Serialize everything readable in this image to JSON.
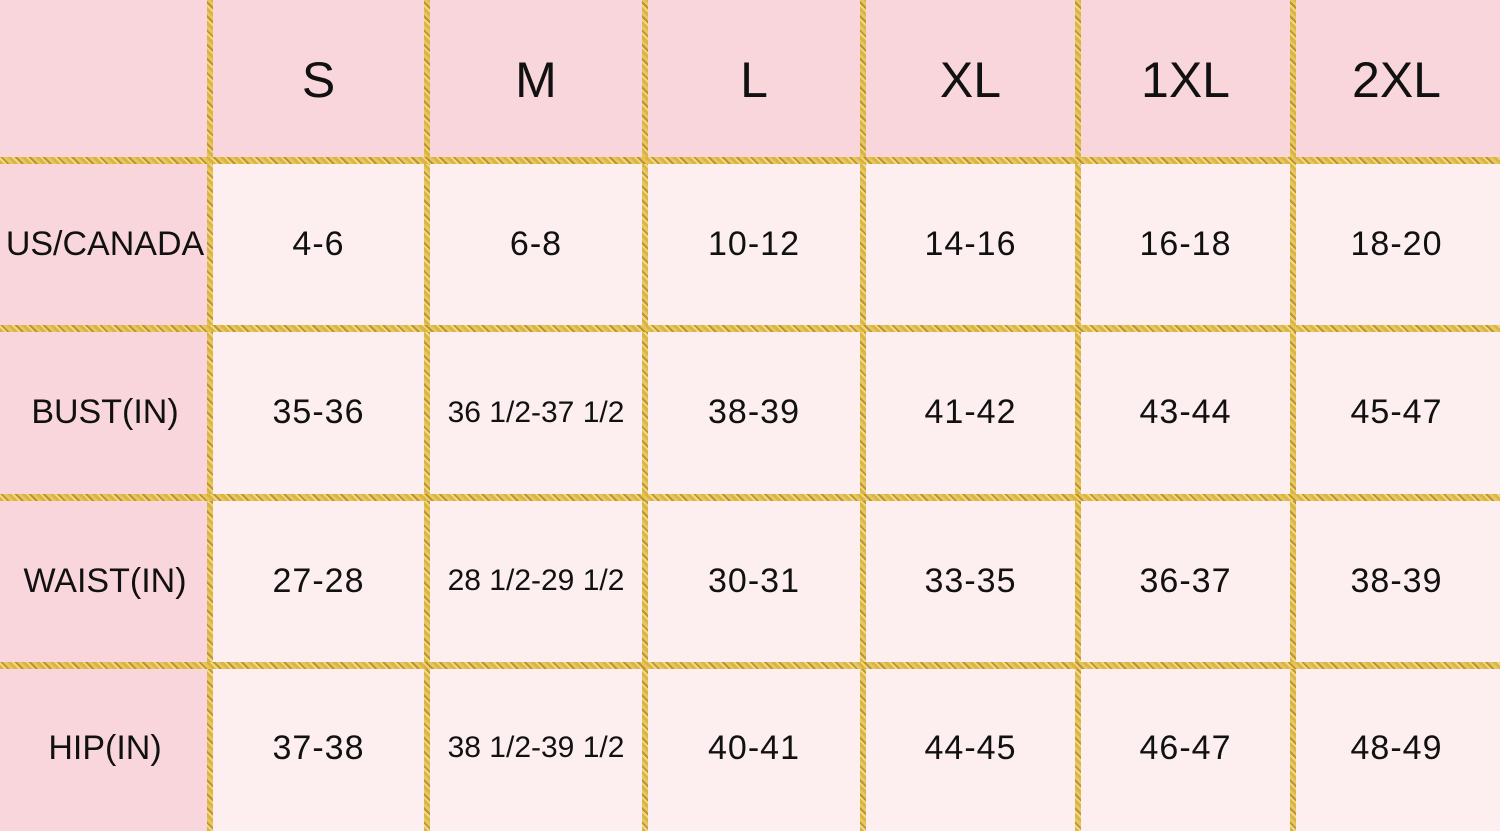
{
  "table": {
    "columns": [
      "S",
      "M",
      "L",
      "XL",
      "1XL",
      "2XL"
    ],
    "rows": [
      {
        "label": "US/CANADA",
        "cells": [
          "4-6",
          "6-8",
          "10-12",
          "14-16",
          "16-18",
          "18-20"
        ]
      },
      {
        "label": "BUST(IN)",
        "cells": [
          "35-36",
          "36 1/2-37 1/2",
          "38-39",
          "41-42",
          "43-44",
          "45-47"
        ]
      },
      {
        "label": "WAIST(IN)",
        "cells": [
          "27-28",
          "28 1/2-29 1/2",
          "30-31",
          "33-35",
          "36-37",
          "38-39"
        ]
      },
      {
        "label": "HIP(IN)",
        "cells": [
          "37-38",
          "38 1/2-39 1/2",
          "40-41",
          "44-45",
          "46-47",
          "48-49"
        ]
      }
    ]
  }
}
